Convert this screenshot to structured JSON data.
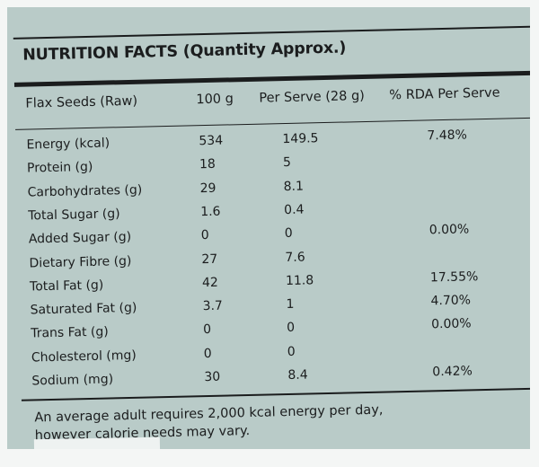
{
  "title": "NUTRITION FACTS (Quantity Approx.)",
  "columns": [
    "Flax Seeds (Raw)",
    "100 g",
    "Per Serve (28 g)",
    "% RDA Per Serve"
  ],
  "rows": [
    {
      "name": "Energy (kcal)",
      "per100": "534",
      "perServe": "149.5",
      "rda": "7.48%"
    },
    {
      "name": "Protein (g)",
      "per100": "18",
      "perServe": "5",
      "rda": ""
    },
    {
      "name": "Carbohydrates (g)",
      "per100": "29",
      "perServe": "8.1",
      "rda": ""
    },
    {
      "name": "Total Sugar (g)",
      "per100": "1.6",
      "perServe": "0.4",
      "rda": ""
    },
    {
      "name": "Added Sugar (g)",
      "per100": "0",
      "perServe": "0",
      "rda": "0.00%"
    },
    {
      "name": "Dietary Fibre (g)",
      "per100": "27",
      "perServe": "7.6",
      "rda": ""
    },
    {
      "name": "Total Fat (g)",
      "per100": "42",
      "perServe": "11.8",
      "rda": "17.55%"
    },
    {
      "name": "Saturated Fat (g)",
      "per100": "3.7",
      "perServe": "1",
      "rda": "4.70%"
    },
    {
      "name": "Trans Fat (g)",
      "per100": "0",
      "perServe": "0",
      "rda": "0.00%"
    },
    {
      "name": "Cholesterol (mg)",
      "per100": "0",
      "perServe": "0",
      "rda": ""
    },
    {
      "name": "Sodium (mg)",
      "per100": "30",
      "perServe": "8.4",
      "rda": "0.42%"
    }
  ],
  "footnote_line1": "An average adult requires 2,000 kcal energy per day,",
  "footnote_line2": "however calorie needs may vary."
}
